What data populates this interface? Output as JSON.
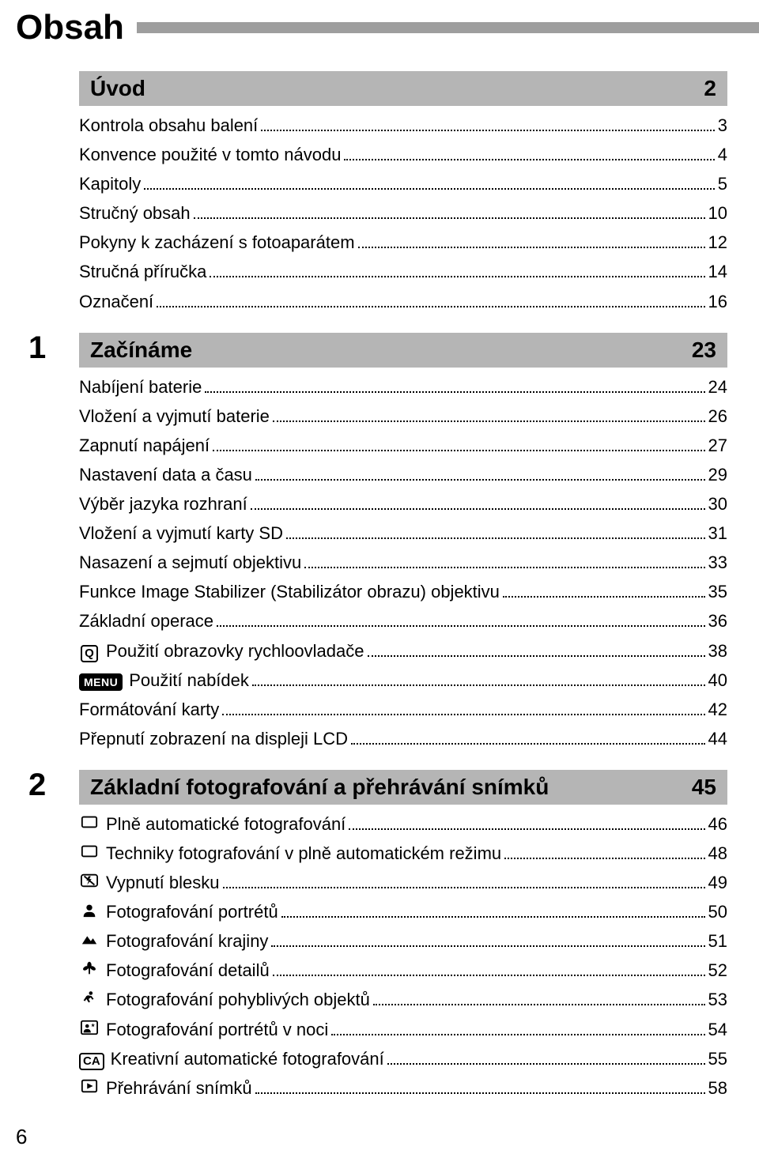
{
  "page_title": "Obsah",
  "page_number": "6",
  "colors": {
    "section_bg": "#b5b5b5",
    "title_bar": "#9e9e9e",
    "text": "#000000",
    "bg": "#ffffff"
  },
  "sections": [
    {
      "num": "",
      "title": "Úvod",
      "page": "2",
      "items": [
        {
          "icon": "",
          "label": "Kontrola obsahu balení",
          "page": "3"
        },
        {
          "icon": "",
          "label": "Konvence použité v tomto návodu",
          "page": "4"
        },
        {
          "icon": "",
          "label": "Kapitoly",
          "page": "5"
        },
        {
          "icon": "",
          "label": "Stručný obsah",
          "page": "10"
        },
        {
          "icon": "",
          "label": "Pokyny k zacházení s fotoaparátem",
          "page": "12"
        },
        {
          "icon": "",
          "label": "Stručná příručka",
          "page": "14"
        },
        {
          "icon": "",
          "label": "Označení",
          "page": "16"
        }
      ]
    },
    {
      "num": "1",
      "title": "Začínáme",
      "page": "23",
      "items": [
        {
          "icon": "",
          "label": "Nabíjení baterie",
          "page": "24"
        },
        {
          "icon": "",
          "label": "Vložení a vyjmutí baterie",
          "page": "26"
        },
        {
          "icon": "",
          "label": "Zapnutí napájení",
          "page": "27"
        },
        {
          "icon": "",
          "label": "Nastavení data a času",
          "page": "29"
        },
        {
          "icon": "",
          "label": "Výběr jazyka rozhraní",
          "page": "30"
        },
        {
          "icon": "",
          "label": "Vložení a vyjmutí karty SD",
          "page": "31"
        },
        {
          "icon": "",
          "label": "Nasazení a sejmutí objektivu",
          "page": "33"
        },
        {
          "icon": "",
          "label": "Funkce Image Stabilizer (Stabilizátor obrazu) objektivu",
          "page": "35"
        },
        {
          "icon": "",
          "label": "Základní operace",
          "page": "36"
        },
        {
          "icon": "q-box",
          "label": "Použití obrazovky rychloovladače",
          "page": "38"
        },
        {
          "icon": "menu-box",
          "label": "Použití nabídek",
          "page": "40"
        },
        {
          "icon": "",
          "label": "Formátování karty",
          "page": "42"
        },
        {
          "icon": "",
          "label": "Přepnutí zobrazení na displeji LCD",
          "page": "44"
        }
      ]
    },
    {
      "num": "2",
      "title": "Základní fotografování a přehrávání snímků",
      "page": "45",
      "items": [
        {
          "icon": "rect",
          "label": "Plně automatické fotografování",
          "page": "46"
        },
        {
          "icon": "rect",
          "label": "Techniky fotografování v plně automatickém režimu",
          "page": "48"
        },
        {
          "icon": "flash-off",
          "label": "Vypnutí blesku",
          "page": "49"
        },
        {
          "icon": "portrait",
          "label": "Fotografování portrétů",
          "page": "50"
        },
        {
          "icon": "landscape",
          "label": "Fotografování krajiny",
          "page": "51"
        },
        {
          "icon": "macro",
          "label": "Fotografování detailů",
          "page": "52"
        },
        {
          "icon": "sports",
          "label": "Fotografování pohyblivých objektů",
          "page": "53"
        },
        {
          "icon": "night-portrait",
          "label": "Fotografování portrétů v noci",
          "page": "54"
        },
        {
          "icon": "ca-box",
          "label": "Kreativní automatické fotografování",
          "page": "55"
        },
        {
          "icon": "play",
          "label": "Přehrávání snímků",
          "page": "58"
        }
      ]
    }
  ]
}
